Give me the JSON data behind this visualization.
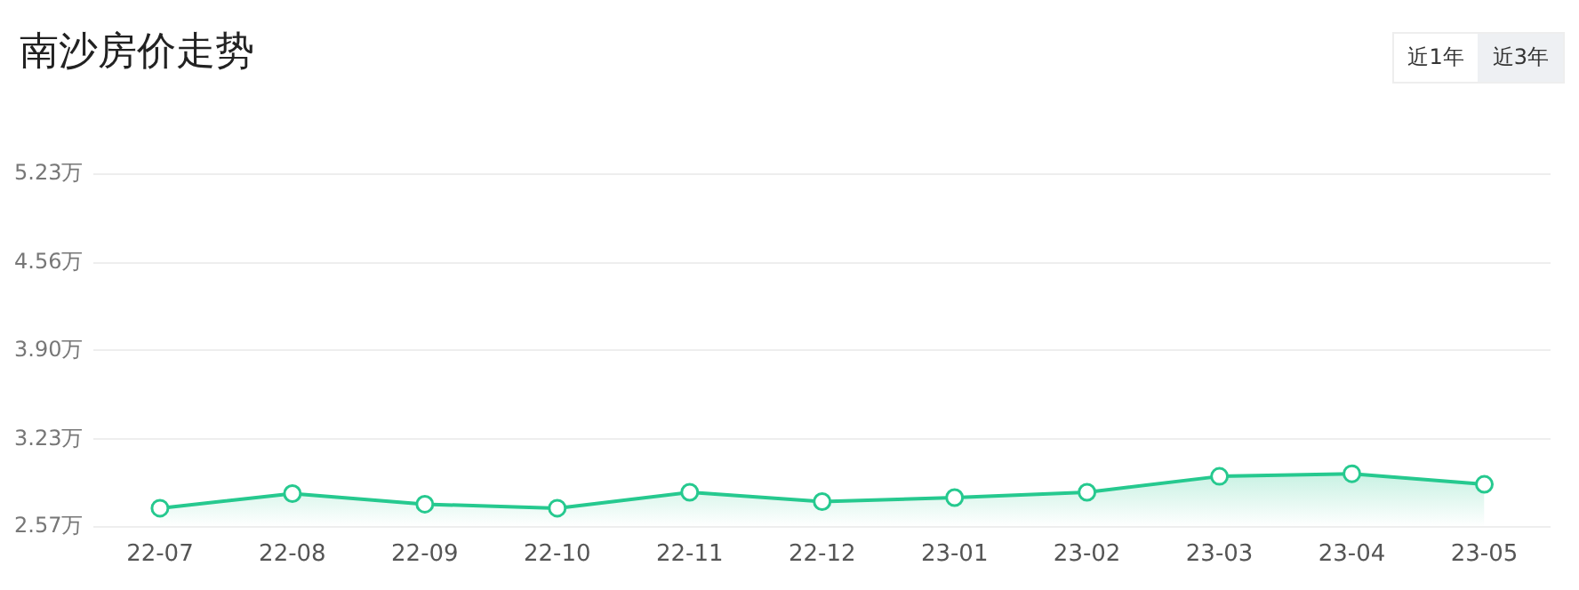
{
  "chart_data": {
    "type": "area",
    "title": "南沙房价走势",
    "categories": [
      "22-07",
      "22-08",
      "22-09",
      "22-10",
      "22-11",
      "22-12",
      "23-01",
      "23-02",
      "23-03",
      "23-04",
      "23-05"
    ],
    "series": [
      {
        "color": "#26c98f",
        "values": [
          2.71,
          2.82,
          2.74,
          2.71,
          2.83,
          2.76,
          2.79,
          2.83,
          2.95,
          2.97,
          2.89
        ]
      }
    ],
    "ylim": [
      2.57,
      5.23
    ],
    "yticks": [
      {
        "value": 2.57,
        "label": "2.57万"
      },
      {
        "value": 3.23,
        "label": "3.23万"
      },
      {
        "value": 3.9,
        "label": "3.90万"
      },
      {
        "value": 4.56,
        "label": "4.56万"
      },
      {
        "value": 5.23,
        "label": "5.23万"
      }
    ],
    "grid": "y",
    "legend": false,
    "marker": "circle",
    "line_style": "solid",
    "annotations": [
      "近1年",
      "近3年"
    ]
  }
}
